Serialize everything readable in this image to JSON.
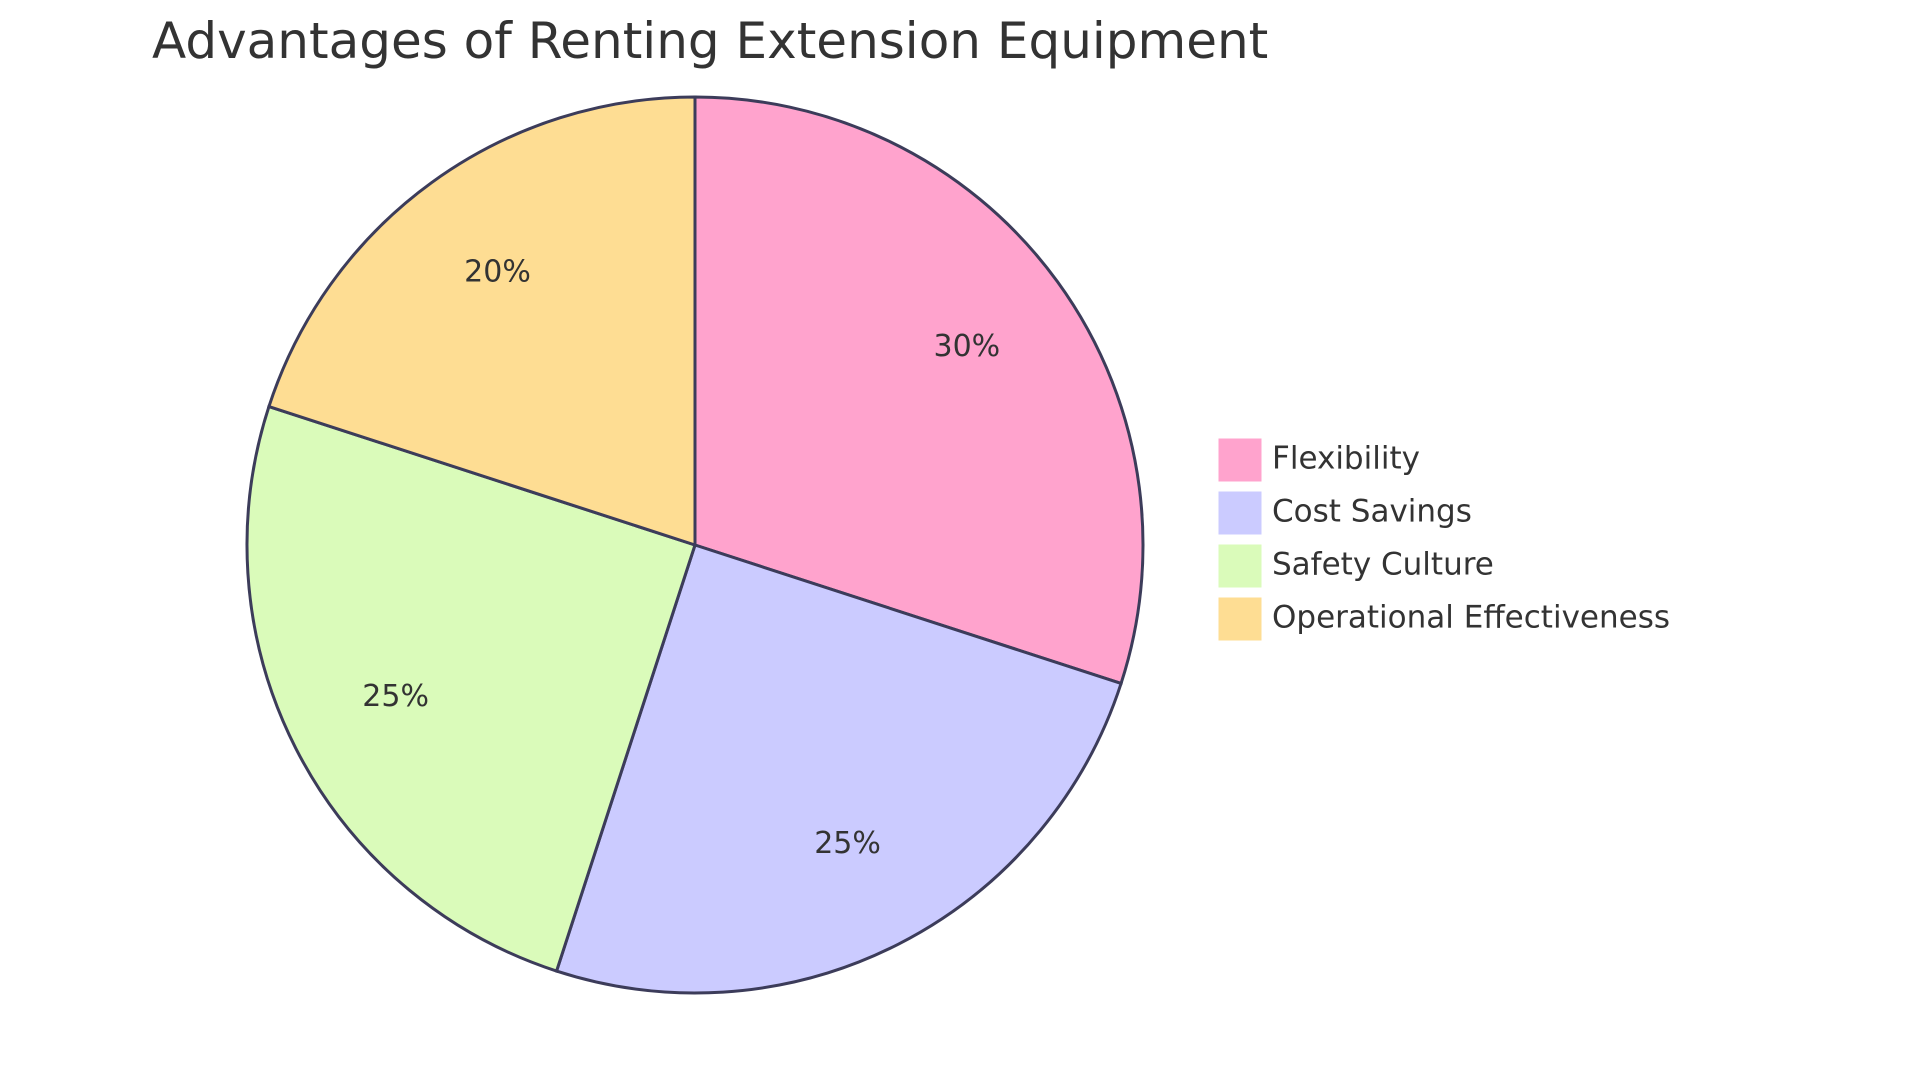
{
  "chart_data": {
    "type": "pie",
    "title": "Advantages of Renting Extension Equipment",
    "legend_position": "right",
    "slices": [
      {
        "name": "Flexibility",
        "value": 30,
        "label": "30%",
        "color": "#FFA3CD"
      },
      {
        "name": "Cost Savings",
        "value": 25,
        "label": "25%",
        "color": "#CBCBFF"
      },
      {
        "name": "Safety Culture",
        "value": 25,
        "label": "25%",
        "color": "#DAFBBA"
      },
      {
        "name": "Operational Effectiveness",
        "value": 20,
        "label": "20%",
        "color": "#FEDD93"
      }
    ]
  }
}
